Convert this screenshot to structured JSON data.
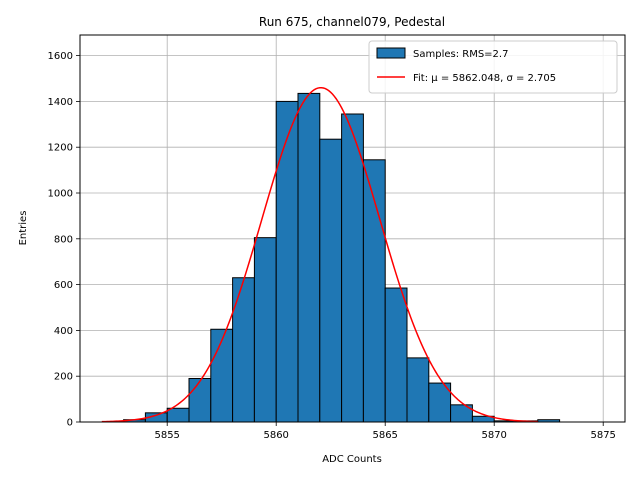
{
  "chart_data": {
    "type": "bar",
    "title": "Run 675, channel079, Pedestal",
    "xlabel": "ADC Counts",
    "ylabel": "Entries",
    "xlim": [
      5851,
      5876
    ],
    "ylim": [
      0,
      1690
    ],
    "x_ticks": [
      5855,
      5860,
      5865,
      5870,
      5875
    ],
    "y_ticks": [
      0,
      200,
      400,
      600,
      800,
      1000,
      1200,
      1400,
      1600
    ],
    "grid": true,
    "legend_position": "top-right",
    "bin_width": 1,
    "bars": [
      {
        "x": 5853,
        "value": 10
      },
      {
        "x": 5854,
        "value": 40
      },
      {
        "x": 5855,
        "value": 60
      },
      {
        "x": 5856,
        "value": 190
      },
      {
        "x": 5857,
        "value": 405
      },
      {
        "x": 5858,
        "value": 630
      },
      {
        "x": 5859,
        "value": 805
      },
      {
        "x": 5860,
        "value": 1400
      },
      {
        "x": 5861,
        "value": 1435
      },
      {
        "x": 5862,
        "value": 1235
      },
      {
        "x": 5863,
        "value": 1345
      },
      {
        "x": 5864,
        "value": 1145
      },
      {
        "x": 5865,
        "value": 585
      },
      {
        "x": 5866,
        "value": 280
      },
      {
        "x": 5867,
        "value": 170
      },
      {
        "x": 5868,
        "value": 75
      },
      {
        "x": 5869,
        "value": 25
      },
      {
        "x": 5870,
        "value": 5
      },
      {
        "x": 5871,
        "value": 5
      },
      {
        "x": 5872,
        "value": 10
      }
    ],
    "fit": {
      "mu": 5862.048,
      "sigma": 2.705,
      "amplitude": 1460,
      "x_range": [
        5852,
        5872
      ]
    },
    "legend": [
      {
        "label": "Samples: RMS=2.7",
        "kind": "patch",
        "color": "#1f77b4"
      },
      {
        "label": "Fit: μ = 5862.048, σ = 2.705",
        "kind": "line",
        "color": "#ff0000"
      }
    ],
    "colors": {
      "bar": "#1f77b4",
      "bar_edge": "#000000",
      "fit": "#ff0000",
      "grid": "#b0b0b0"
    }
  }
}
